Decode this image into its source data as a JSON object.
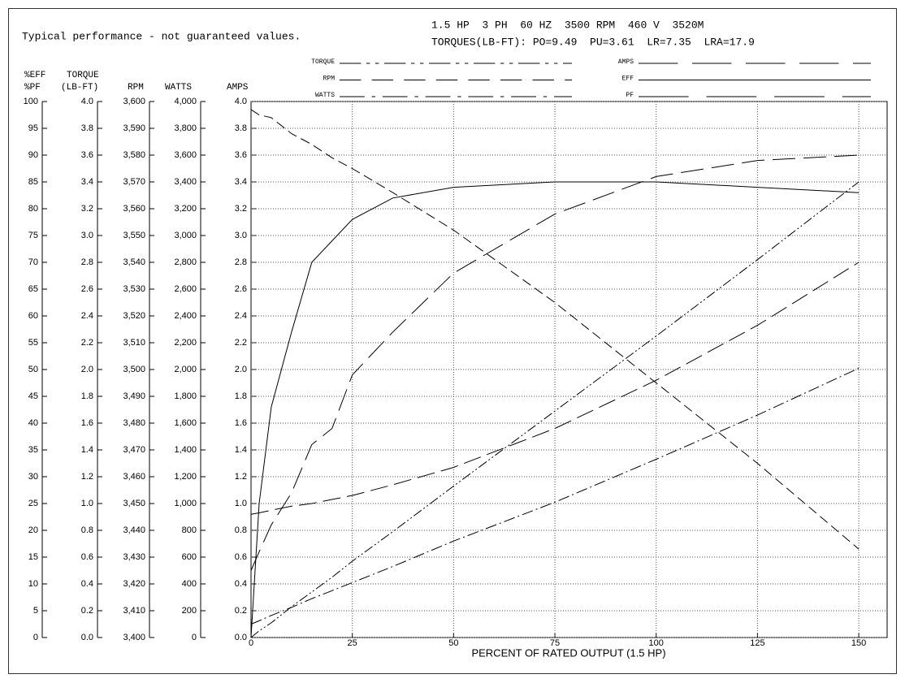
{
  "chart_data": {
    "type": "line",
    "note": "Typical performance - not guaranteed values.",
    "title": "1.5 HP  3 PH  60 HZ  3500 RPM  460 V  3520M",
    "subtitle": "TORQUES(LB-FT): PO=9.49  PU=3.61  LR=7.35  LRA=17.9",
    "xlabel": "PERCENT OF RATED OUTPUT (1.5 HP)",
    "xlim": [
      0,
      157
    ],
    "xticks": [
      0,
      25,
      50,
      75,
      100,
      125,
      150
    ],
    "grid": true,
    "x": [
      0,
      2,
      5,
      10,
      15,
      20,
      25,
      35,
      50,
      75,
      100,
      125,
      150
    ],
    "y_axes": [
      {
        "labels": [
          "%EFF",
          "%PF"
        ],
        "ylim": [
          0,
          100
        ],
        "yticks": [
          0,
          5,
          10,
          15,
          20,
          25,
          30,
          35,
          40,
          45,
          50,
          55,
          60,
          65,
          70,
          75,
          80,
          85,
          90,
          95,
          100
        ]
      },
      {
        "labels": [
          "TORQUE",
          "(LB-FT)"
        ],
        "ylim": [
          0,
          4
        ],
        "yticks": [
          {
            "value": 0,
            "label": "0.0"
          },
          0.2,
          0.4,
          0.6,
          0.8,
          {
            "value": 1,
            "label": "1.0"
          },
          1.2,
          1.4,
          1.6,
          1.8,
          {
            "value": 2,
            "label": "2.0"
          },
          2.2,
          2.4,
          2.6,
          2.8,
          {
            "value": 3,
            "label": "3.0"
          },
          3.2,
          3.4,
          3.6,
          3.8,
          {
            "value": 4,
            "label": "4.0"
          }
        ]
      },
      {
        "labels": [
          "RPM"
        ],
        "ylim": [
          3400,
          3600
        ],
        "yticks": [
          {
            "value": 3400,
            "label": "3,400"
          },
          {
            "value": 3410,
            "label": "3,410"
          },
          {
            "value": 3420,
            "label": "3,420"
          },
          {
            "value": 3430,
            "label": "3,430"
          },
          {
            "value": 3440,
            "label": "3,440"
          },
          {
            "value": 3450,
            "label": "3,450"
          },
          {
            "value": 3460,
            "label": "3,460"
          },
          {
            "value": 3470,
            "label": "3,470"
          },
          {
            "value": 3480,
            "label": "3,480"
          },
          {
            "value": 3490,
            "label": "3,490"
          },
          {
            "value": 3500,
            "label": "3,500"
          },
          {
            "value": 3510,
            "label": "3,510"
          },
          {
            "value": 3520,
            "label": "3,520"
          },
          {
            "value": 3530,
            "label": "3,530"
          },
          {
            "value": 3540,
            "label": "3,540"
          },
          {
            "value": 3550,
            "label": "3,550"
          },
          {
            "value": 3560,
            "label": "3,560"
          },
          {
            "value": 3570,
            "label": "3,570"
          },
          {
            "value": 3580,
            "label": "3,580"
          },
          {
            "value": 3590,
            "label": "3,590"
          },
          {
            "value": 3600,
            "label": "3,600"
          }
        ]
      },
      {
        "labels": [
          "WATTS"
        ],
        "ylim": [
          0,
          4000
        ],
        "yticks": [
          0,
          200,
          400,
          600,
          800,
          {
            "value": 1000,
            "label": "1,000"
          },
          {
            "value": 1200,
            "label": "1,200"
          },
          {
            "value": 1400,
            "label": "1,400"
          },
          {
            "value": 1600,
            "label": "1,600"
          },
          {
            "value": 1800,
            "label": "1,800"
          },
          {
            "value": 2000,
            "label": "2,000"
          },
          {
            "value": 2200,
            "label": "2,200"
          },
          {
            "value": 2400,
            "label": "2,400"
          },
          {
            "value": 2600,
            "label": "2,600"
          },
          {
            "value": 2800,
            "label": "2,800"
          },
          {
            "value": 3000,
            "label": "3,000"
          },
          {
            "value": 3200,
            "label": "3,200"
          },
          {
            "value": 3400,
            "label": "3,400"
          },
          {
            "value": 3600,
            "label": "3,600"
          },
          {
            "value": 3800,
            "label": "3,800"
          },
          {
            "value": 4000,
            "label": "4,000"
          }
        ]
      },
      {
        "labels": [
          "AMPS"
        ],
        "ylim": [
          0,
          4
        ],
        "yticks": [
          {
            "value": 0,
            "label": "0.0"
          },
          0.2,
          0.4,
          0.6,
          0.8,
          {
            "value": 1,
            "label": "1.0"
          },
          1.2,
          1.4,
          1.6,
          1.8,
          {
            "value": 2,
            "label": "2.0"
          },
          2.2,
          2.4,
          2.6,
          2.8,
          {
            "value": 3,
            "label": "3.0"
          },
          3.2,
          3.4,
          3.6,
          3.8,
          {
            "value": 4,
            "label": "4.0"
          }
        ]
      }
    ],
    "series": [
      {
        "name": "TORQUE",
        "axis": 1,
        "color": "#000000",
        "dash": "12 3 2 3 2 3",
        "values": [
          0,
          0.05,
          0.11,
          0.23,
          0.34,
          0.45,
          0.57,
          0.79,
          1.13,
          1.69,
          2.25,
          2.82,
          3.4
        ]
      },
      {
        "name": "RPM",
        "axis": 2,
        "color": "#000000",
        "dash": "12 6",
        "values": [
          3597,
          3595,
          3594,
          3588,
          3584,
          3579,
          3575,
          3566,
          3552,
          3525,
          3495,
          3465,
          3433
        ]
      },
      {
        "name": "WATTS",
        "axis": 3,
        "color": "#000000",
        "dash": "14 4 2 4",
        "values": [
          100,
          125,
          165,
          225,
          290,
          350,
          410,
          530,
          720,
          1010,
          1330,
          1660,
          2010
        ]
      },
      {
        "name": "AMPS",
        "axis": 4,
        "color": "#000000",
        "dash": "22 8",
        "values": [
          0.92,
          0.93,
          0.95,
          0.98,
          1.0,
          1.03,
          1.06,
          1.14,
          1.27,
          1.56,
          1.92,
          2.33,
          2.8
        ]
      },
      {
        "name": "EFF",
        "axis": 0,
        "color": "#000000",
        "dash": "none",
        "values": [
          0,
          25,
          43,
          57,
          70,
          74,
          78,
          82,
          84,
          85,
          85,
          84,
          83
        ]
      },
      {
        "name": "PF",
        "axis": 0,
        "color": "#000000",
        "dash": "28 10",
        "values": [
          12.5,
          16,
          21,
          27,
          36,
          39,
          49,
          57,
          68,
          79,
          86,
          89,
          90
        ]
      }
    ]
  }
}
